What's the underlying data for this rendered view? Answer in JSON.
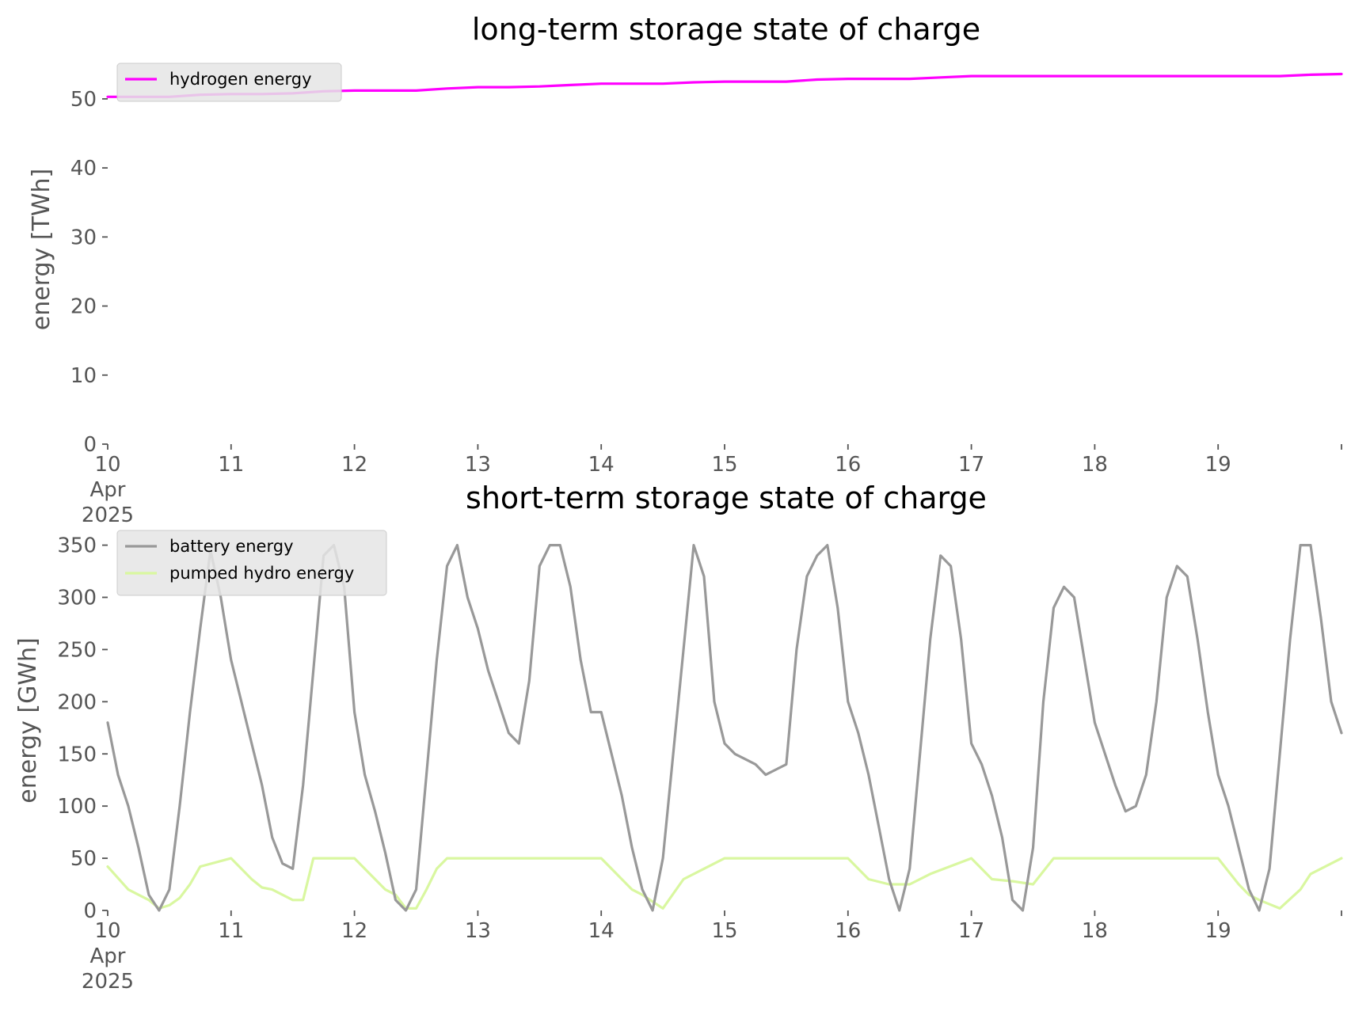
{
  "chart_data": [
    {
      "type": "line",
      "title": "long-term storage state of charge",
      "ylabel": "energy [TWh]",
      "ylim": [
        0,
        54
      ],
      "yticks": [
        0,
        10,
        20,
        30,
        40,
        50
      ],
      "xlim": [
        "2025-04-10",
        "2025-04-20"
      ],
      "x_tick_dates": [
        "2025-04-10",
        "2025-04-11",
        "2025-04-12",
        "2025-04-13",
        "2025-04-14",
        "2025-04-15",
        "2025-04-16",
        "2025-04-17",
        "2025-04-18",
        "2025-04-19"
      ],
      "x_tick_labels": [
        [
          "10",
          "Apr",
          "2025"
        ],
        [
          "11"
        ],
        [
          "12"
        ],
        [
          "13"
        ],
        [
          "14"
        ],
        [
          "15"
        ],
        [
          "16"
        ],
        [
          "17"
        ],
        [
          "18"
        ],
        [
          "19"
        ]
      ],
      "grid": false,
      "legend_position": "top-left",
      "colors": {
        "hydrogen energy": "#ff00ff"
      },
      "series": [
        {
          "name": "hydrogen energy",
          "x": [
            "2025-04-10 00:00",
            "2025-04-10 06:00",
            "2025-04-10 12:00",
            "2025-04-10 18:00",
            "2025-04-11 00:00",
            "2025-04-11 06:00",
            "2025-04-11 12:00",
            "2025-04-11 18:00",
            "2025-04-12 00:00",
            "2025-04-12 06:00",
            "2025-04-12 12:00",
            "2025-04-12 18:00",
            "2025-04-13 00:00",
            "2025-04-13 06:00",
            "2025-04-13 12:00",
            "2025-04-13 18:00",
            "2025-04-14 00:00",
            "2025-04-14 06:00",
            "2025-04-14 12:00",
            "2025-04-14 18:00",
            "2025-04-15 00:00",
            "2025-04-15 06:00",
            "2025-04-15 12:00",
            "2025-04-15 18:00",
            "2025-04-16 00:00",
            "2025-04-16 06:00",
            "2025-04-16 12:00",
            "2025-04-16 18:00",
            "2025-04-17 00:00",
            "2025-04-17 06:00",
            "2025-04-17 12:00",
            "2025-04-17 18:00",
            "2025-04-18 00:00",
            "2025-04-18 06:00",
            "2025-04-18 12:00",
            "2025-04-18 18:00",
            "2025-04-19 00:00",
            "2025-04-19 06:00",
            "2025-04-19 12:00",
            "2025-04-19 18:00",
            "2025-04-20 00:00"
          ],
          "values": [
            50.3,
            50.3,
            50.3,
            50.6,
            50.7,
            50.7,
            50.8,
            51.1,
            51.2,
            51.2,
            51.2,
            51.5,
            51.7,
            51.7,
            51.8,
            52.0,
            52.2,
            52.2,
            52.2,
            52.4,
            52.5,
            52.5,
            52.5,
            52.8,
            52.9,
            52.9,
            52.9,
            53.1,
            53.3,
            53.3,
            53.3,
            53.3,
            53.3,
            53.3,
            53.3,
            53.3,
            53.3,
            53.3,
            53.3,
            53.5,
            53.6
          ]
        }
      ]
    },
    {
      "type": "line",
      "title": "short-term storage state of charge",
      "ylabel": "energy [GWh]",
      "ylim": [
        0,
        355
      ],
      "yticks": [
        0,
        50,
        100,
        150,
        200,
        250,
        300,
        350
      ],
      "xlim": [
        "2025-04-10",
        "2025-04-20"
      ],
      "x_tick_dates": [
        "2025-04-10",
        "2025-04-11",
        "2025-04-12",
        "2025-04-13",
        "2025-04-14",
        "2025-04-15",
        "2025-04-16",
        "2025-04-17",
        "2025-04-18",
        "2025-04-19"
      ],
      "x_tick_labels": [
        [
          "10",
          "Apr",
          "2025"
        ],
        [
          "11"
        ],
        [
          "12"
        ],
        [
          "13"
        ],
        [
          "14"
        ],
        [
          "15"
        ],
        [
          "16"
        ],
        [
          "17"
        ],
        [
          "18"
        ],
        [
          "19"
        ]
      ],
      "grid": false,
      "legend_position": "top-left",
      "colors": {
        "battery energy": "#999999",
        "pumped hydro energy": "#d9f7a0"
      },
      "series": [
        {
          "name": "battery energy",
          "x": [
            "2025-04-10 00:00",
            "2025-04-10 02:00",
            "2025-04-10 04:00",
            "2025-04-10 06:00",
            "2025-04-10 08:00",
            "2025-04-10 10:00",
            "2025-04-10 12:00",
            "2025-04-10 14:00",
            "2025-04-10 16:00",
            "2025-04-10 18:00",
            "2025-04-10 20:00",
            "2025-04-10 22:00",
            "2025-04-11 00:00",
            "2025-04-11 02:00",
            "2025-04-11 04:00",
            "2025-04-11 06:00",
            "2025-04-11 08:00",
            "2025-04-11 10:00",
            "2025-04-11 12:00",
            "2025-04-11 14:00",
            "2025-04-11 16:00",
            "2025-04-11 18:00",
            "2025-04-11 20:00",
            "2025-04-11 22:00",
            "2025-04-12 00:00",
            "2025-04-12 02:00",
            "2025-04-12 04:00",
            "2025-04-12 06:00",
            "2025-04-12 08:00",
            "2025-04-12 10:00",
            "2025-04-12 12:00",
            "2025-04-12 14:00",
            "2025-04-12 16:00",
            "2025-04-12 18:00",
            "2025-04-12 20:00",
            "2025-04-12 22:00",
            "2025-04-13 00:00",
            "2025-04-13 02:00",
            "2025-04-13 04:00",
            "2025-04-13 06:00",
            "2025-04-13 08:00",
            "2025-04-13 10:00",
            "2025-04-13 12:00",
            "2025-04-13 14:00",
            "2025-04-13 16:00",
            "2025-04-13 18:00",
            "2025-04-13 20:00",
            "2025-04-13 22:00",
            "2025-04-14 00:00",
            "2025-04-14 02:00",
            "2025-04-14 04:00",
            "2025-04-14 06:00",
            "2025-04-14 08:00",
            "2025-04-14 10:00",
            "2025-04-14 12:00",
            "2025-04-14 14:00",
            "2025-04-14 16:00",
            "2025-04-14 18:00",
            "2025-04-14 20:00",
            "2025-04-14 22:00",
            "2025-04-15 00:00",
            "2025-04-15 02:00",
            "2025-04-15 04:00",
            "2025-04-15 06:00",
            "2025-04-15 08:00",
            "2025-04-15 10:00",
            "2025-04-15 12:00",
            "2025-04-15 14:00",
            "2025-04-15 16:00",
            "2025-04-15 18:00",
            "2025-04-15 20:00",
            "2025-04-15 22:00",
            "2025-04-16 00:00",
            "2025-04-16 02:00",
            "2025-04-16 04:00",
            "2025-04-16 06:00",
            "2025-04-16 08:00",
            "2025-04-16 10:00",
            "2025-04-16 12:00",
            "2025-04-16 14:00",
            "2025-04-16 16:00",
            "2025-04-16 18:00",
            "2025-04-16 20:00",
            "2025-04-16 22:00",
            "2025-04-17 00:00",
            "2025-04-17 02:00",
            "2025-04-17 04:00",
            "2025-04-17 06:00",
            "2025-04-17 08:00",
            "2025-04-17 10:00",
            "2025-04-17 12:00",
            "2025-04-17 14:00",
            "2025-04-17 16:00",
            "2025-04-17 18:00",
            "2025-04-17 20:00",
            "2025-04-17 22:00",
            "2025-04-18 00:00",
            "2025-04-18 02:00",
            "2025-04-18 04:00",
            "2025-04-18 06:00",
            "2025-04-18 08:00",
            "2025-04-18 10:00",
            "2025-04-18 12:00",
            "2025-04-18 14:00",
            "2025-04-18 16:00",
            "2025-04-18 18:00",
            "2025-04-18 20:00",
            "2025-04-18 22:00",
            "2025-04-19 00:00",
            "2025-04-19 02:00",
            "2025-04-19 04:00",
            "2025-04-19 06:00",
            "2025-04-19 08:00",
            "2025-04-19 10:00",
            "2025-04-19 12:00",
            "2025-04-19 14:00",
            "2025-04-19 16:00",
            "2025-04-19 18:00",
            "2025-04-19 20:00",
            "2025-04-19 22:00",
            "2025-04-20 00:00"
          ],
          "values": [
            180,
            130,
            100,
            60,
            15,
            0,
            20,
            100,
            190,
            270,
            345,
            300,
            240,
            200,
            160,
            120,
            70,
            45,
            40,
            120,
            230,
            340,
            350,
            310,
            190,
            130,
            95,
            55,
            10,
            0,
            20,
            130,
            240,
            330,
            350,
            300,
            270,
            230,
            200,
            170,
            160,
            220,
            330,
            350,
            350,
            310,
            240,
            190,
            190,
            150,
            110,
            60,
            20,
            0,
            50,
            150,
            250,
            350,
            320,
            200,
            160,
            150,
            145,
            140,
            130,
            135,
            140,
            250,
            320,
            340,
            350,
            290,
            200,
            170,
            130,
            80,
            30,
            0,
            40,
            150,
            260,
            340,
            330,
            260,
            160,
            140,
            110,
            70,
            10,
            0,
            60,
            200,
            290,
            310,
            300,
            240,
            180,
            150,
            120,
            95,
            100,
            130,
            200,
            300,
            330,
            320,
            260,
            190,
            130,
            100,
            60,
            20,
            0,
            40,
            150,
            260,
            350,
            350,
            280,
            200,
            170
          ],
          "total_points_note": ""
        },
        {
          "name": "pumped hydro energy",
          "x": [
            "2025-04-10 00:00",
            "2025-04-10 04:00",
            "2025-04-10 06:00",
            "2025-04-10 08:00",
            "2025-04-10 10:00",
            "2025-04-10 12:00",
            "2025-04-10 14:00",
            "2025-04-10 16:00",
            "2025-04-10 18:00",
            "2025-04-11 00:00",
            "2025-04-11 04:00",
            "2025-04-11 06:00",
            "2025-04-11 08:00",
            "2025-04-11 10:00",
            "2025-04-11 12:00",
            "2025-04-11 14:00",
            "2025-04-11 16:00",
            "2025-04-12 00:00",
            "2025-04-12 04:00",
            "2025-04-12 06:00",
            "2025-04-12 08:00",
            "2025-04-12 10:00",
            "2025-04-12 12:00",
            "2025-04-12 14:00",
            "2025-04-12 16:00",
            "2025-04-12 18:00",
            "2025-04-13 00:00",
            "2025-04-14 00:00",
            "2025-04-14 04:00",
            "2025-04-14 06:00",
            "2025-04-14 08:00",
            "2025-04-14 12:00",
            "2025-04-14 16:00",
            "2025-04-15 00:00",
            "2025-04-16 00:00",
            "2025-04-16 04:00",
            "2025-04-16 08:00",
            "2025-04-16 12:00",
            "2025-04-16 16:00",
            "2025-04-17 00:00",
            "2025-04-17 04:00",
            "2025-04-17 08:00",
            "2025-04-17 12:00",
            "2025-04-17 16:00",
            "2025-04-18 00:00",
            "2025-04-19 00:00",
            "2025-04-19 04:00",
            "2025-04-19 06:00",
            "2025-04-19 08:00",
            "2025-04-19 12:00",
            "2025-04-19 16:00",
            "2025-04-19 18:00",
            "2025-04-20 00:00"
          ],
          "values": [
            42,
            20,
            15,
            10,
            2,
            5,
            12,
            25,
            42,
            50,
            30,
            22,
            20,
            15,
            10,
            10,
            50,
            50,
            30,
            20,
            15,
            2,
            2,
            20,
            40,
            50,
            50,
            50,
            30,
            20,
            15,
            2,
            30,
            50,
            50,
            30,
            25,
            25,
            35,
            50,
            30,
            28,
            25,
            50,
            50,
            50,
            25,
            15,
            10,
            2,
            20,
            35,
            50
          ]
        }
      ]
    }
  ]
}
